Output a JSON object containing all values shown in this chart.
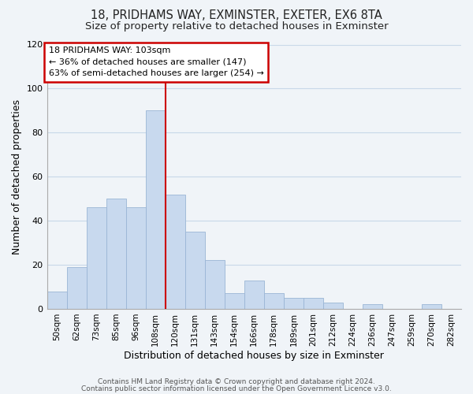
{
  "title": "18, PRIDHAMS WAY, EXMINSTER, EXETER, EX6 8TA",
  "subtitle": "Size of property relative to detached houses in Exminster",
  "xlabel": "Distribution of detached houses by size in Exminster",
  "ylabel": "Number of detached properties",
  "bar_color": "#c8d9ee",
  "bar_edge_color": "#9ab5d5",
  "categories": [
    "50sqm",
    "62sqm",
    "73sqm",
    "85sqm",
    "96sqm",
    "108sqm",
    "120sqm",
    "131sqm",
    "143sqm",
    "154sqm",
    "166sqm",
    "178sqm",
    "189sqm",
    "201sqm",
    "212sqm",
    "224sqm",
    "236sqm",
    "247sqm",
    "259sqm",
    "270sqm",
    "282sqm"
  ],
  "values": [
    8,
    19,
    46,
    50,
    46,
    90,
    52,
    35,
    22,
    7,
    13,
    7,
    5,
    5,
    3,
    0,
    2,
    0,
    0,
    2,
    0
  ],
  "ylim": [
    0,
    120
  ],
  "yticks": [
    0,
    20,
    40,
    60,
    80,
    100,
    120
  ],
  "property_line_x": 5.5,
  "annotation_box_text": "18 PRIDHAMS WAY: 103sqm\n← 36% of detached houses are smaller (147)\n63% of semi-detached houses are larger (254) →",
  "footer1": "Contains HM Land Registry data © Crown copyright and database right 2024.",
  "footer2": "Contains public sector information licensed under the Open Government Licence v3.0.",
  "background_color": "#f0f4f8",
  "grid_color": "#c8d8e8",
  "title_fontsize": 10.5,
  "subtitle_fontsize": 9.5,
  "annot_fontsize": 8,
  "footer_fontsize": 6.5
}
